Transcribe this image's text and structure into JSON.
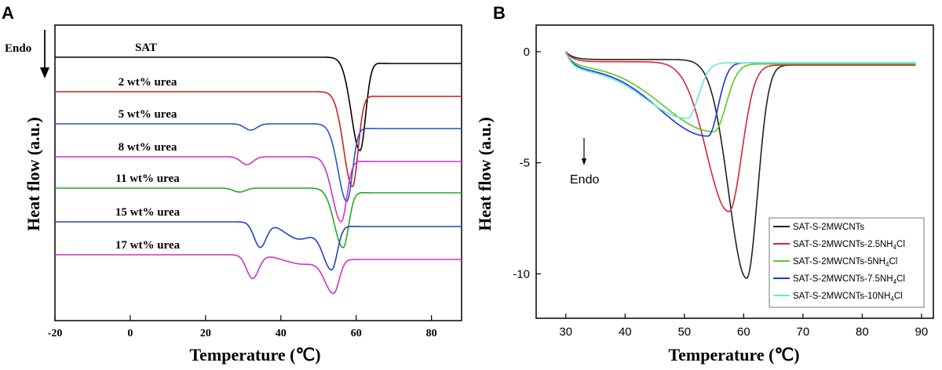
{
  "chart_data": [
    {
      "panel": "A",
      "type": "line",
      "xlabel": "Temperature (℃)",
      "ylabel": "Heat flow (a.u.)",
      "xlim": [
        -20,
        88
      ],
      "xticks": [
        "-20",
        "0",
        "20",
        "40",
        "60",
        "80"
      ],
      "endo_label": "Endo",
      "series": [
        {
          "name": "SAT",
          "color": "#000000",
          "label": "SAT",
          "baseline": 0,
          "valley_T": 61,
          "valley_depth": 118,
          "extra_dips": []
        },
        {
          "name": "2 wt% urea",
          "color": "#cc2222",
          "label": "2 wt% urea",
          "baseline": 1,
          "valley_T": 59,
          "valley_depth": 120,
          "extra_dips": []
        },
        {
          "name": "5 wt% urea",
          "color": "#2255cc",
          "label": "5 wt% urea",
          "baseline": 2,
          "valley_T": 57.5,
          "valley_depth": 98,
          "extra_dips": [
            {
              "T": 32,
              "depth": 8
            }
          ]
        },
        {
          "name": "8 wt% urea",
          "color": "#cc33cc",
          "label": "8 wt% urea",
          "baseline": 3,
          "valley_T": 56,
          "valley_depth": 82,
          "extra_dips": [
            {
              "T": 31,
              "depth": 10
            }
          ]
        },
        {
          "name": "11 wt% urea",
          "color": "#22aa22",
          "label": "11 wt% urea",
          "baseline": 4,
          "valley_T": 56.5,
          "valley_depth": 75,
          "extra_dips": [
            {
              "T": 29,
              "depth": 5
            }
          ]
        },
        {
          "name": "15 wt% urea",
          "color": "#2244bb",
          "label": "15 wt% urea",
          "baseline": 5,
          "valley_T": 53.5,
          "valley_depth": 58,
          "extra_dips": [
            {
              "T": 34.5,
              "depth": 32
            }
          ]
        },
        {
          "name": "17 wt% urea",
          "color": "#cc33cc",
          "label": "17 wt% urea",
          "baseline": 6,
          "valley_T": 54,
          "valley_depth": 45,
          "extra_dips": [
            {
              "T": 32.5,
              "depth": 30
            }
          ]
        }
      ]
    },
    {
      "panel": "B",
      "type": "line",
      "xlabel": "Temperature (℃)",
      "ylabel": "Heat flow (a.u.)",
      "xlim": [
        25,
        92
      ],
      "ylim": [
        -12,
        1.2
      ],
      "xticks": [
        30,
        40,
        50,
        60,
        70,
        80,
        90
      ],
      "yticks": [
        0,
        -5,
        -10
      ],
      "endo_label": "Endo",
      "legend_position": "bottom-right",
      "series": [
        {
          "name": "SAT-S-2MWCNTs",
          "legend_main": "SAT-S-2MWCNTs",
          "legend_sub": "",
          "legend_tail": "",
          "color": "#222222",
          "onset": 52,
          "peak_T": 60.5,
          "peak_y": -10.2,
          "recover_T": 66,
          "end_y": -0.6,
          "baseline_y": -0.35
        },
        {
          "name": "SAT-S-2MWCNTs-2.5NH4Cl",
          "legend_main": "SAT-S-2MWCNTs-2.5NH",
          "legend_sub": "4",
          "legend_tail": "Cl",
          "color": "#dd2233",
          "onset": 47,
          "peak_T": 57.5,
          "peak_y": -7.2,
          "recover_T": 64,
          "end_y": -0.6,
          "baseline_y": -0.45
        },
        {
          "name": "SAT-S-2MWCNTs-5NH4Cl",
          "legend_main": "SAT-S-2MWCNTs-5NH",
          "legend_sub": "4",
          "legend_tail": "Cl",
          "color": "#55cc22",
          "onset": 31,
          "peak_T": 55,
          "peak_y": -3.6,
          "recover_T": 61,
          "end_y": -0.55,
          "baseline_y": -0.6
        },
        {
          "name": "SAT-S-2MWCNTs-7.5NH4Cl",
          "legend_main": "SAT-S-2MWCNTs-7.5NH",
          "legend_sub": "4",
          "legend_tail": "Cl",
          "color": "#2233dd",
          "onset": 31,
          "peak_T": 54,
          "peak_y": -3.8,
          "recover_T": 59,
          "end_y": -0.5,
          "baseline_y": -0.7
        },
        {
          "name": "SAT-S-2MWCNTs-10NH4Cl",
          "legend_main": "SAT-S-2MWCNTs-10NH",
          "legend_sub": "4",
          "legend_tail": "Cl",
          "color": "#66e8d8",
          "onset": 31,
          "peak_T": 50.5,
          "peak_y": -3.0,
          "recover_T": 56,
          "end_y": -0.5,
          "baseline_y": -0.8
        }
      ]
    }
  ]
}
